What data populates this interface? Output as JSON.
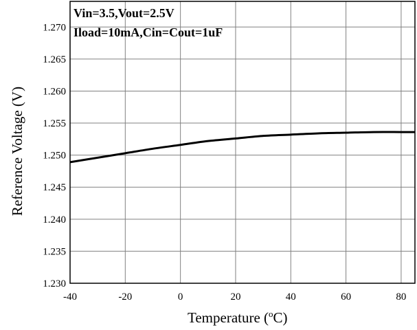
{
  "chart_data": {
    "type": "line",
    "title": "",
    "xlabel": "Temperature (",
    "xlabel_sup": "o",
    "xlabel_unit": "C)",
    "ylabel": "Reference Voltage (V)",
    "xlim": [
      -40,
      85
    ],
    "ylim": [
      1.23,
      1.274
    ],
    "x_ticks": [
      -40,
      -20,
      0,
      20,
      40,
      60,
      80
    ],
    "x_tick_labels": [
      "-40",
      "-20",
      "0",
      "20",
      "40",
      "60",
      "80"
    ],
    "y_ticks": [
      1.23,
      1.235,
      1.24,
      1.245,
      1.25,
      1.255,
      1.26,
      1.265,
      1.27
    ],
    "y_tick_labels": [
      "1.230",
      "1.235",
      "1.240",
      "1.245",
      "1.250",
      "1.255",
      "1.260",
      "1.265",
      "1.270"
    ],
    "grid": true,
    "legend": "none",
    "annotations": [
      "Vin=3.5,Vout=2.5V",
      "Iload=10mA,Cin=Cout=1uF"
    ],
    "line_color": "#000000",
    "series": [
      {
        "x": [
          -40,
          -30,
          -20,
          -10,
          0,
          10,
          20,
          30,
          40,
          50,
          60,
          70,
          80,
          85
        ],
        "values": [
          1.2489,
          1.2496,
          1.2503,
          1.251,
          1.2516,
          1.2522,
          1.2526,
          1.253,
          1.2532,
          1.2534,
          1.2535,
          1.2536,
          1.2536,
          1.2536
        ]
      }
    ]
  }
}
